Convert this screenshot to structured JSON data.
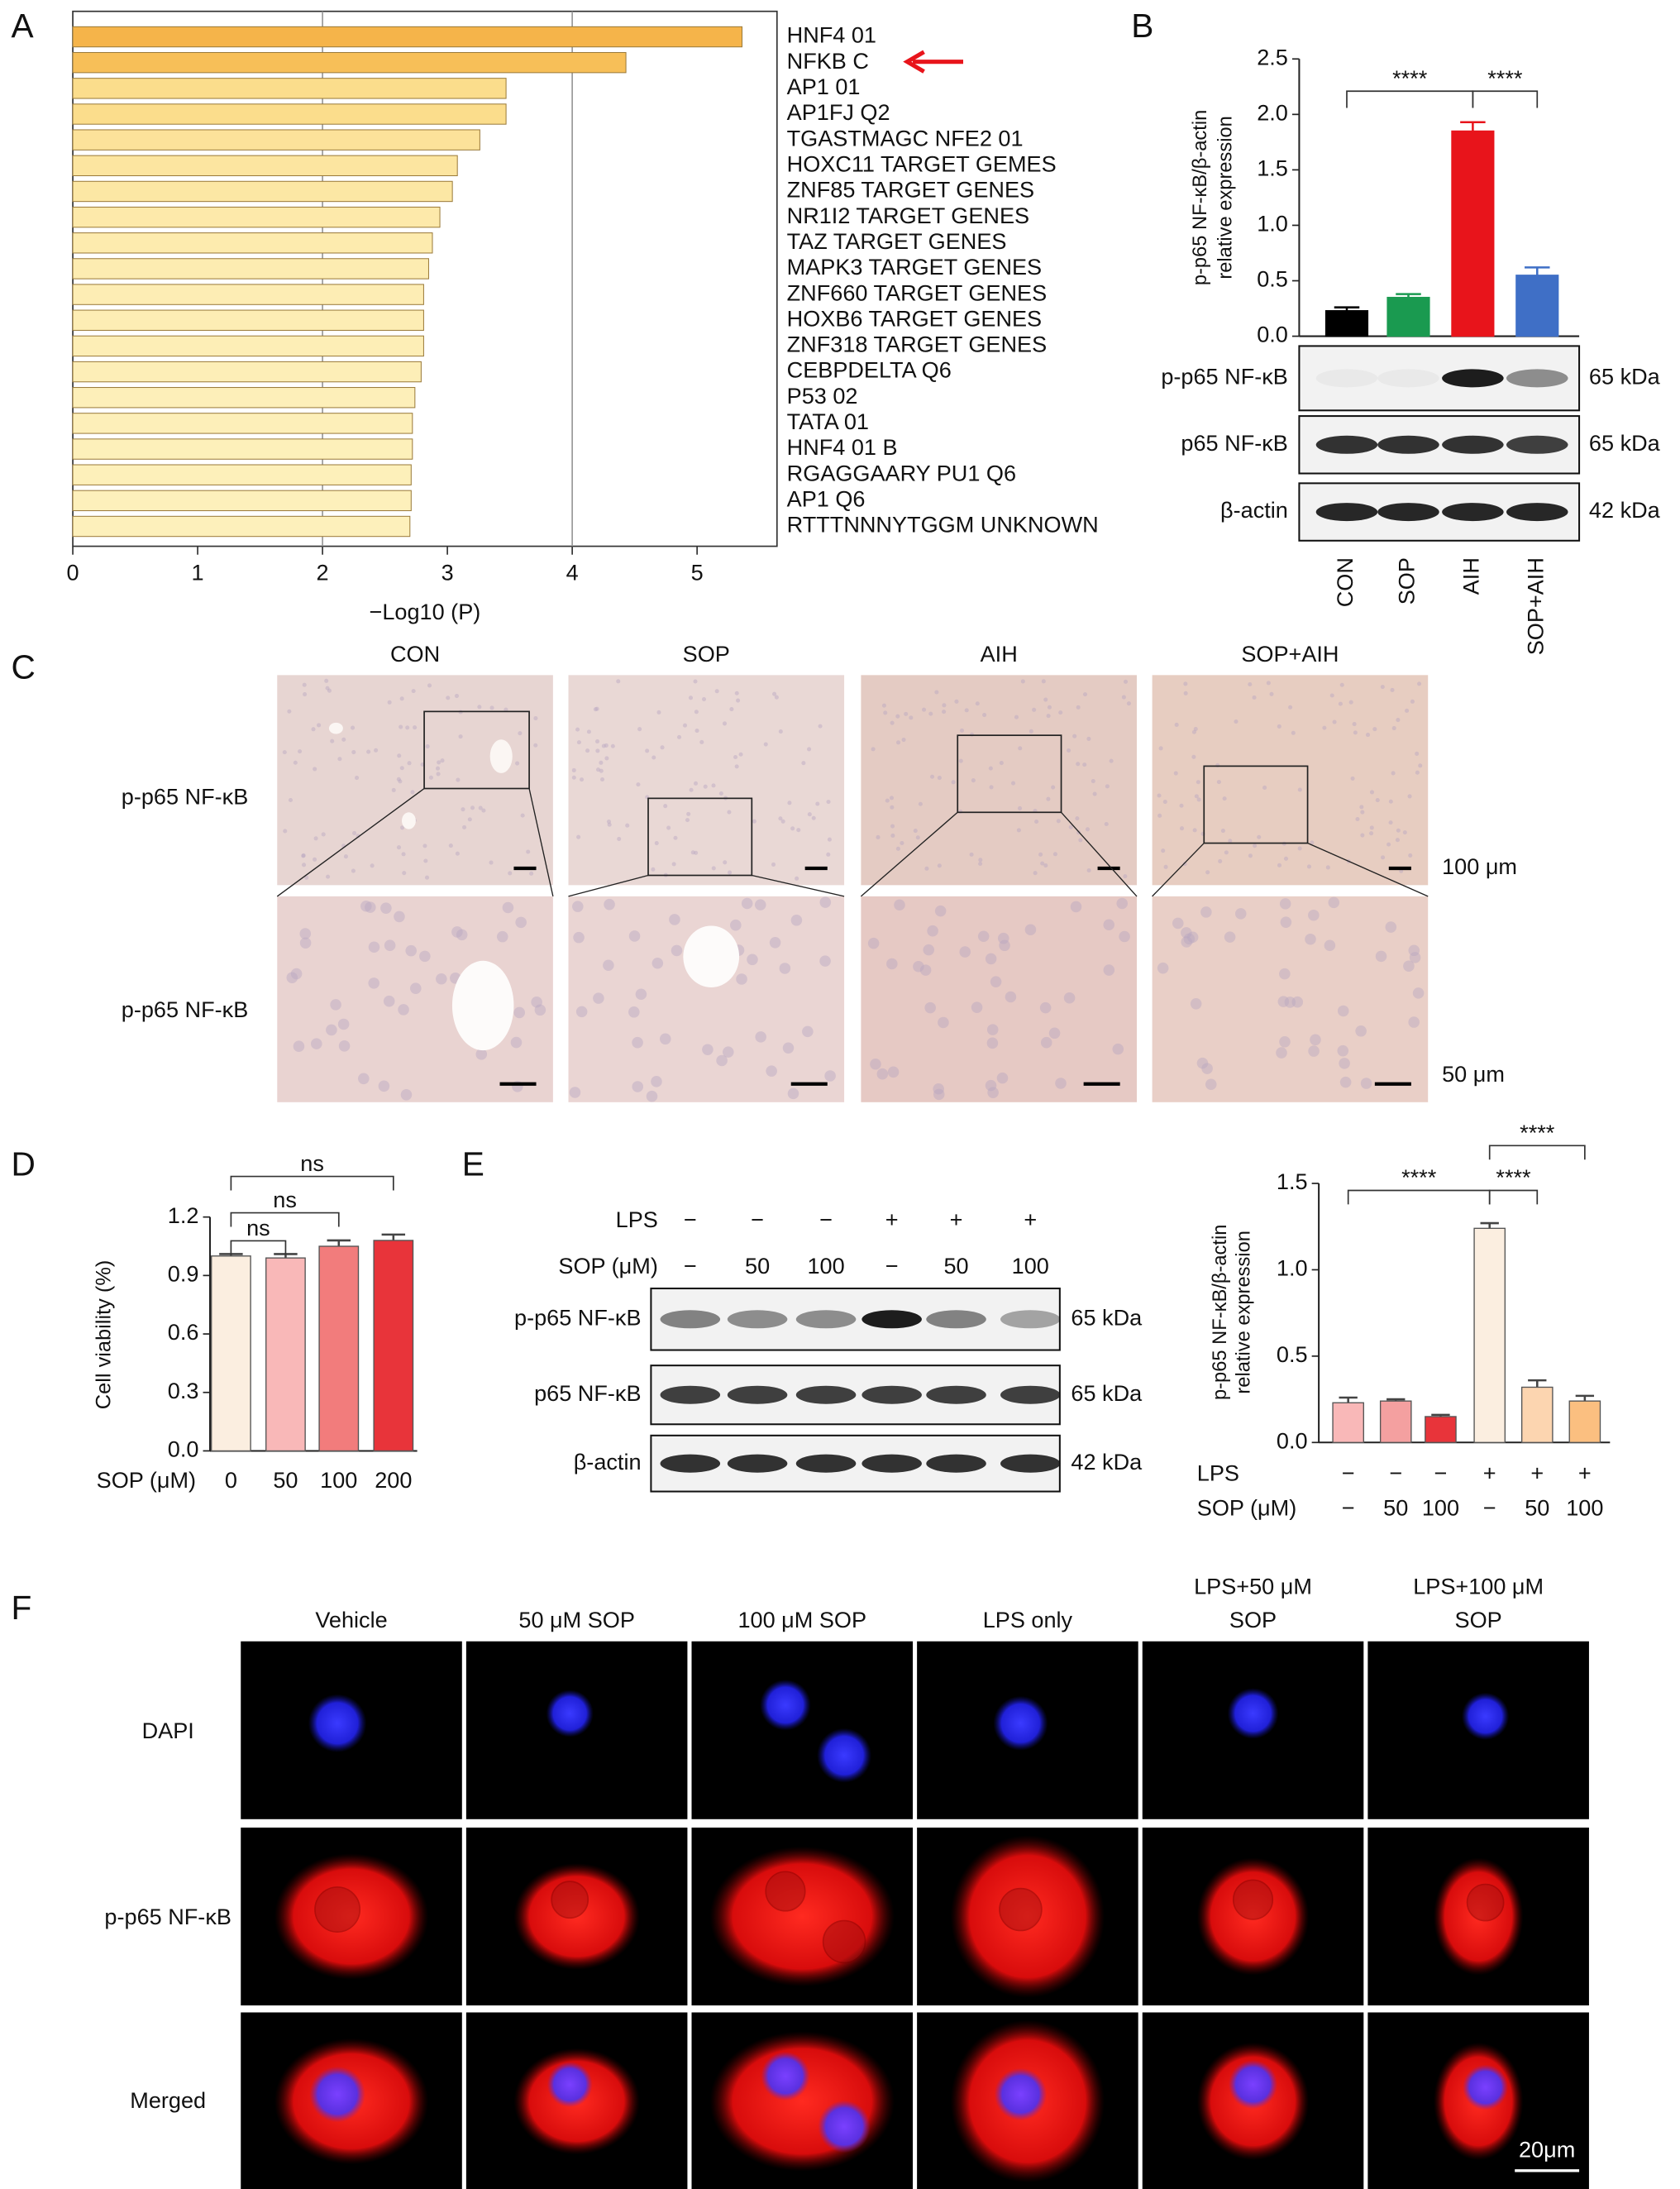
{
  "chart_data": [
    {
      "panel_label": "A",
      "type": "barh",
      "categories": [
        "HNF4 01",
        "NFKB C",
        "AP1 01",
        "AP1FJ Q2",
        "TGASTMAGC NFE2 01",
        "HOXC11 TARGET GEMES",
        "ZNF85 TARGET GENES",
        "NR1I2 TARGET GENES",
        "TAZ TARGET GENES",
        "MAPK3 TARGET GENES",
        "ZNF660 TARGET GENES",
        "HOXB6 TARGET GENES",
        "ZNF318 TARGET GENES",
        "CEBPDELTA Q6",
        "P53 02",
        "TATA 01",
        "HNF4 01 B",
        "RGAGGAARY PU1 Q6",
        "AP1 Q6",
        "RTTTNNNYTGGM UNKNOWN"
      ],
      "values": [
        5.36,
        4.43,
        3.47,
        3.47,
        3.26,
        3.08,
        3.04,
        2.94,
        2.88,
        2.85,
        2.81,
        2.81,
        2.81,
        2.79,
        2.74,
        2.72,
        2.72,
        2.71,
        2.71,
        2.7
      ],
      "colors": [
        "#f5b44a",
        "#f7bf58",
        "#fbdd8c",
        "#fbdd8c",
        "#fce29a",
        "#fce5a0",
        "#fce7a4",
        "#fde9aa",
        "#fdebae",
        "#fdecb1",
        "#fdedb4",
        "#fdedb4",
        "#fdeeb6",
        "#fdeeb7",
        "#fdefb9",
        "#fdefb9",
        "#fdf0ba",
        "#fdf0ba",
        "#fdf0bb",
        "#fdf0bb"
      ],
      "xlim": [
        0,
        5.64
      ],
      "xticks": [
        0,
        1,
        2,
        3,
        4,
        5
      ],
      "gridlines": [
        2,
        4
      ],
      "xlabel": "−Log10 (P)"
    },
    {
      "panel_label": "B",
      "type": "bar",
      "categories": [
        "CON",
        "SOP",
        "AIH",
        "SOP+AIH"
      ],
      "values": [
        0.23,
        0.35,
        1.85,
        0.55
      ],
      "errors": [
        0.03,
        0.03,
        0.08,
        0.07
      ],
      "colors": [
        "#000000",
        "#1a9a50",
        "#e8141b",
        "#3f6fc6"
      ],
      "ylim": [
        0,
        2.5
      ],
      "yticks": [
        {
          "value": 0,
          "label": "0.0"
        },
        0.5,
        {
          "value": 1,
          "label": "1.0"
        },
        1.5,
        {
          "value": 2,
          "label": "2.0"
        },
        2.5
      ],
      "ylabel": [
        "p-p65 NF-κB/β-actin",
        "relative expression"
      ],
      "significance": [
        {
          "between": [
            0,
            2
          ],
          "label": "****"
        },
        {
          "between": [
            2,
            3
          ],
          "label": "****"
        }
      ],
      "blot": {
        "rows": [
          {
            "label": "p-p65 NF-κB",
            "size": "65 kDa"
          },
          {
            "label": "p65 NF-κB",
            "size": "65 kDa"
          },
          {
            "label": "β-actin",
            "size": "42 kDa"
          }
        ]
      }
    },
    {
      "panel_label": "D",
      "type": "bar",
      "categories": [
        "0",
        "50",
        "100",
        "200"
      ],
      "xlabel": "SOP (μM)",
      "values": [
        1.0,
        0.99,
        1.05,
        1.08
      ],
      "errors": [
        0.01,
        0.02,
        0.03,
        0.03
      ],
      "colors": [
        "#fbeee0",
        "#f9b8b8",
        "#f27c7c",
        "#e8343a"
      ],
      "ylim": [
        0,
        1.2
      ],
      "yticks": [
        {
          "value": 0,
          "label": "0.0"
        },
        0.3,
        0.6,
        0.9,
        1.2
      ],
      "ylabel": "Cell viability (%)",
      "significance": [
        {
          "between": [
            0,
            3
          ],
          "label": "ns"
        },
        {
          "between": [
            0,
            2
          ],
          "label": "ns"
        },
        {
          "between": [
            0,
            1
          ],
          "label": "ns"
        }
      ]
    },
    {
      "panel_label": "E",
      "type": "bar",
      "category_rows": [
        {
          "name": "LPS",
          "labels": [
            "−",
            "−",
            "−",
            "+",
            "+",
            "+"
          ]
        },
        {
          "name": "SOP (μM)",
          "labels": [
            "−",
            "50",
            "100",
            "−",
            "50",
            "100"
          ]
        }
      ],
      "values": [
        0.23,
        0.24,
        0.15,
        1.24,
        0.32,
        0.24
      ],
      "errors": [
        0.03,
        0.01,
        0.01,
        0.03,
        0.04,
        0.03
      ],
      "colors": [
        "#f9b8b8",
        "#f4a0a0",
        "#e8343a",
        "#fbeee0",
        "#fcd5b0",
        "#fbbf80"
      ],
      "ylim": [
        0,
        1.5
      ],
      "yticks": [
        {
          "value": 0,
          "label": "0.0"
        },
        0.5,
        {
          "value": 1,
          "label": "1.0"
        },
        1.5
      ],
      "ylabel": [
        "p-p65 NF-κB/β-actin",
        "relative expression"
      ],
      "significance": [
        {
          "between": [
            0,
            3
          ],
          "label": "****"
        },
        {
          "between": [
            3,
            4
          ],
          "label": "****"
        },
        {
          "between": [
            3,
            5
          ],
          "label": "****"
        }
      ],
      "blot": {
        "conditions": [
          {
            "name": "LPS",
            "labels": [
              "−",
              "−",
              "−",
              "+",
              "+",
              "+"
            ]
          },
          {
            "name": "SOP (μM)",
            "labels": [
              "−",
              "50",
              "100",
              "−",
              "50",
              "100"
            ]
          }
        ],
        "rows": [
          {
            "label": "p-p65 NF-κB",
            "size": "65 kDa"
          },
          {
            "label": "p65 NF-κB",
            "size": "65 kDa"
          },
          {
            "label": "β-actin",
            "size": "42 kDa"
          }
        ]
      }
    }
  ],
  "panel_C": {
    "label": "C",
    "columns": [
      "CON",
      "SOP",
      "AIH",
      "SOP+AIH"
    ],
    "rows": [
      "p-p65 NF-κB",
      "p-p65 NF-κB"
    ],
    "scale_bars": [
      "100 μm",
      "50 μm"
    ]
  },
  "panel_F": {
    "label": "F",
    "columns": [
      [
        "Vehicle"
      ],
      [
        "50 μM SOP"
      ],
      [
        "100 μM SOP"
      ],
      [
        "LPS only"
      ],
      [
        "LPS+50 μM",
        "SOP"
      ],
      [
        "LPS+100 μM",
        "SOP"
      ]
    ],
    "rows": [
      "DAPI",
      "p-p65 NF-κB",
      "Merged"
    ],
    "scale_bar": "20μm"
  }
}
